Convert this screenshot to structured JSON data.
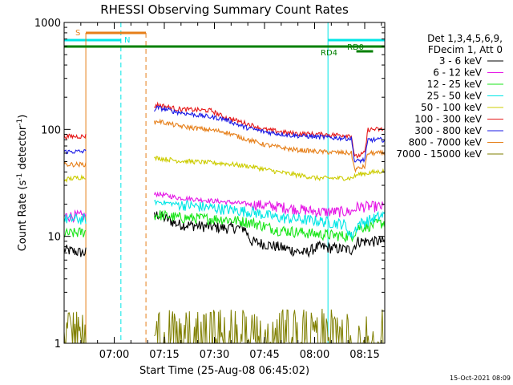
{
  "chart_data": {
    "type": "line",
    "title": "RHESSI Observing Summary Count Rates",
    "xlabel": "Start Time (25-Aug-08 06:45:02)",
    "ylabel": "Count Rate (s",
    "ylabel_sup": "-1",
    "ylabel_tail": " detector",
    "ylabel_sup2": "-1",
    "ylabel_close": ")",
    "x_units": "minutes after 06:45",
    "xlim": [
      0,
      96
    ],
    "ylim": [
      1,
      1000
    ],
    "yscale": "log",
    "x_ticks": [
      {
        "value": 15,
        "label": "07:00"
      },
      {
        "value": 30,
        "label": "07:15"
      },
      {
        "value": 45,
        "label": "07:30"
      },
      {
        "value": 60,
        "label": "07:45"
      },
      {
        "value": 75,
        "label": "08:00"
      },
      {
        "value": 90,
        "label": "08:15"
      }
    ],
    "y_ticks": [
      {
        "value": 1,
        "label": "1"
      },
      {
        "value": 10,
        "label": "10"
      },
      {
        "value": 100,
        "label": "100"
      },
      {
        "value": 1000,
        "label": "1000"
      }
    ],
    "legend": {
      "header": [
        "Det 1,3,4,5,6,9,",
        "FDecim 1, Att 0"
      ],
      "position": "top-right"
    },
    "series": [
      {
        "name": "3 - 6 keV",
        "color": "#000000",
        "points": [
          [
            0,
            7.5
          ],
          [
            6,
            7
          ],
          [
            28,
            16
          ],
          [
            34,
            13
          ],
          [
            48,
            12
          ],
          [
            54,
            12
          ],
          [
            56,
            9
          ],
          [
            64,
            8
          ],
          [
            72,
            7
          ],
          [
            76,
            8
          ],
          [
            86,
            7.5
          ],
          [
            88,
            9
          ],
          [
            96,
            9
          ]
        ]
      },
      {
        "name": "6 - 12 keV",
        "color": "#e619e6",
        "points": [
          [
            0,
            15.5
          ],
          [
            6,
            15.5
          ],
          [
            28,
            25
          ],
          [
            34,
            23
          ],
          [
            48,
            21
          ],
          [
            56,
            20
          ],
          [
            64,
            19
          ],
          [
            76,
            17
          ],
          [
            86,
            17
          ],
          [
            88,
            19
          ],
          [
            96,
            19
          ]
        ]
      },
      {
        "name": "12 - 25 keV",
        "color": "#19e619",
        "points": [
          [
            0,
            10.5
          ],
          [
            6,
            11
          ],
          [
            28,
            16
          ],
          [
            34,
            15
          ],
          [
            48,
            14.5
          ],
          [
            56,
            13.5
          ],
          [
            64,
            11.5
          ],
          [
            76,
            10.5
          ],
          [
            86,
            10
          ],
          [
            88,
            12
          ],
          [
            96,
            13.5
          ]
        ]
      },
      {
        "name": "25 - 50 keV",
        "color": "#00e6e6",
        "points": [
          [
            0,
            14.5
          ],
          [
            6,
            14.5
          ],
          [
            28,
            21
          ],
          [
            34,
            20
          ],
          [
            48,
            18
          ],
          [
            56,
            17
          ],
          [
            64,
            15
          ],
          [
            76,
            14
          ],
          [
            84,
            13
          ],
          [
            86,
            10
          ],
          [
            88,
            13
          ],
          [
            96,
            16
          ]
        ]
      },
      {
        "name": "50 - 100 keV",
        "color": "#cccc00",
        "points": [
          [
            0,
            34
          ],
          [
            6,
            36
          ],
          [
            28,
            54
          ],
          [
            34,
            51
          ],
          [
            48,
            48
          ],
          [
            56,
            45
          ],
          [
            64,
            40
          ],
          [
            76,
            35
          ],
          [
            86,
            35
          ],
          [
            88,
            38
          ],
          [
            96,
            41
          ]
        ]
      },
      {
        "name": "100 - 300 keV",
        "color": "#e61919",
        "points": [
          [
            0,
            86
          ],
          [
            6,
            86
          ],
          [
            28,
            170
          ],
          [
            34,
            155
          ],
          [
            44,
            150
          ],
          [
            48,
            130
          ],
          [
            54,
            115
          ],
          [
            60,
            100
          ],
          [
            68,
            92
          ],
          [
            76,
            90
          ],
          [
            86,
            88
          ],
          [
            87,
            55
          ],
          [
            90,
            60
          ],
          [
            91,
            100
          ],
          [
            96,
            100
          ]
        ]
      },
      {
        "name": "300 - 800 keV",
        "color": "#1919e6",
        "points": [
          [
            0,
            62
          ],
          [
            6,
            62
          ],
          [
            28,
            160
          ],
          [
            34,
            145
          ],
          [
            48,
            125
          ],
          [
            54,
            105
          ],
          [
            60,
            95
          ],
          [
            68,
            88
          ],
          [
            76,
            85
          ],
          [
            86,
            82
          ],
          [
            87,
            50
          ],
          [
            90,
            52
          ],
          [
            91,
            80
          ],
          [
            96,
            80
          ]
        ]
      },
      {
        "name": "800 - 7000 keV",
        "color": "#e67f19",
        "points": [
          [
            0,
            47
          ],
          [
            6,
            47
          ],
          [
            28,
            120
          ],
          [
            34,
            108
          ],
          [
            48,
            95
          ],
          [
            54,
            82
          ],
          [
            60,
            72
          ],
          [
            68,
            65
          ],
          [
            76,
            62
          ],
          [
            86,
            60
          ],
          [
            87,
            42
          ],
          [
            90,
            45
          ],
          [
            91,
            60
          ],
          [
            96,
            60
          ]
        ]
      },
      {
        "name": "7000 - 15000 keV",
        "color": "#7f7f00",
        "points": [
          [
            0,
            1.5
          ],
          [
            6,
            1.5
          ],
          [
            42,
            1.5
          ],
          [
            60,
            1.5
          ],
          [
            86,
            1.5
          ],
          [
            96,
            1.5
          ]
        ]
      }
    ],
    "annotations": [
      {
        "label": "S",
        "color": "#e67f19"
      },
      {
        "label": "N",
        "color": "#00e6e6"
      },
      {
        "label": "RD0",
        "color": "#008000"
      },
      {
        "label": "RD4",
        "color": "#008000"
      }
    ],
    "timestamp": "15-Oct-2021 08:09"
  }
}
